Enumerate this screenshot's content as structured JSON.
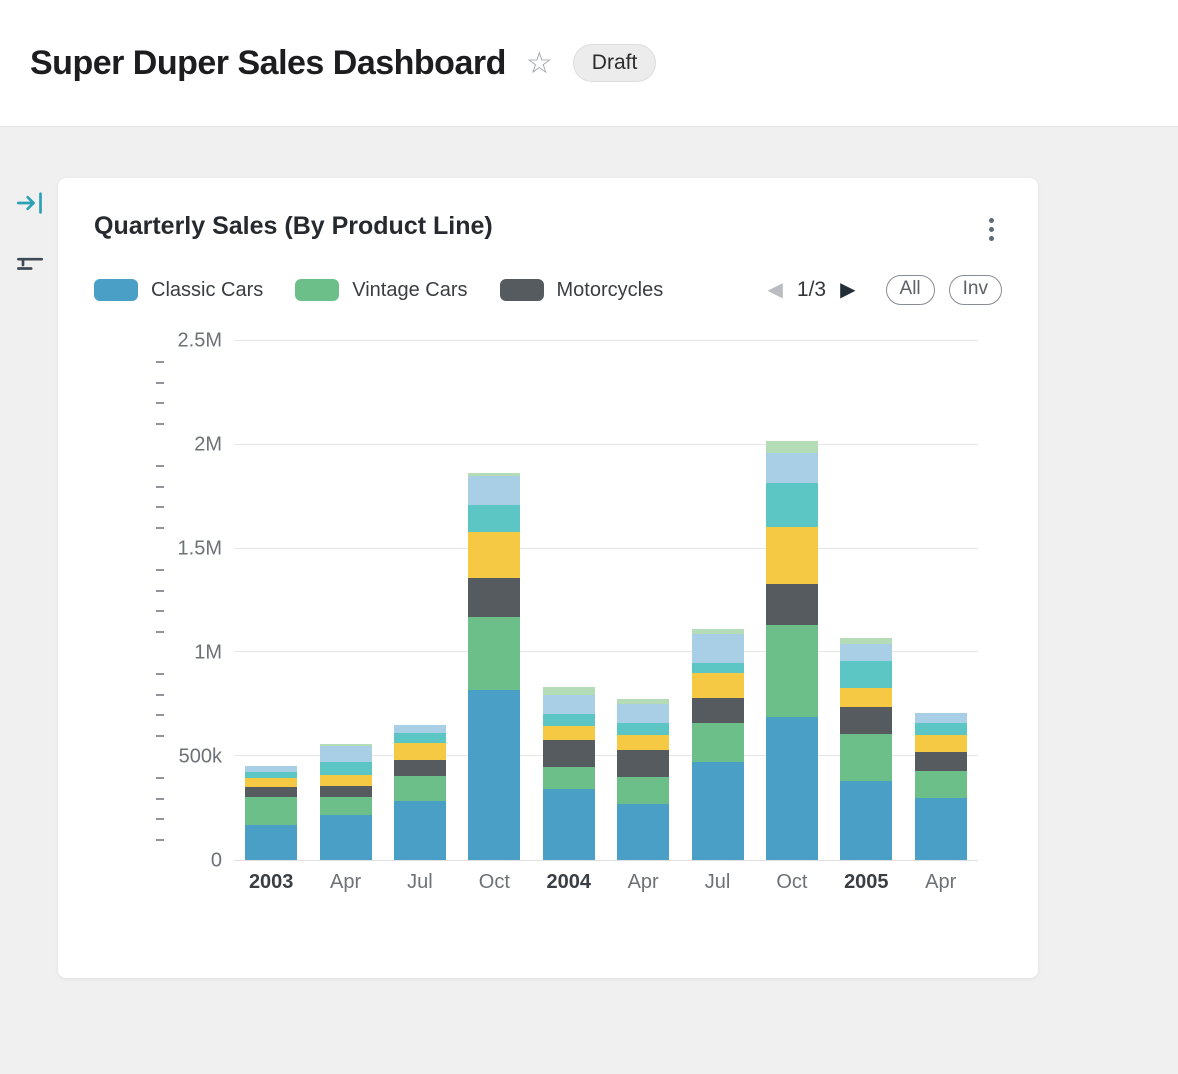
{
  "page": {
    "title": "Super Duper Sales Dashboard",
    "status_badge": "Draft"
  },
  "icons": {
    "favorite_star": "☆",
    "prev_arrow": "◀",
    "next_arrow": "▶"
  },
  "sidebar": {
    "items": [
      {
        "name": "collapse-panel-icon",
        "color": "#2ba2b4"
      },
      {
        "name": "filter-icon",
        "color": "#3f4a54"
      }
    ]
  },
  "card": {
    "title": "Quarterly Sales (By Product Line)",
    "pagination_label": "1/3",
    "buttons": [
      {
        "label": "All"
      },
      {
        "label": "Inv"
      }
    ]
  },
  "chart_data": {
    "type": "bar",
    "stacked": true,
    "title": "Quarterly Sales (By Product Line)",
    "legend_position": "top",
    "legend_visible_series": [
      "Classic Cars",
      "Vintage Cars",
      "Motorcycles"
    ],
    "ylim": [
      0,
      2500000
    ],
    "ytick_step": 500000,
    "minor_tick_step": 100000,
    "grid": true,
    "yticks": [
      {
        "value": 0,
        "label": "0"
      },
      {
        "value": 500000,
        "label": "500k"
      },
      {
        "value": 1000000,
        "label": "1M"
      },
      {
        "value": 1500000,
        "label": "1.5M"
      },
      {
        "value": 2000000,
        "label": "2M"
      },
      {
        "value": 2500000,
        "label": "2.5M"
      }
    ],
    "categories": [
      {
        "label": "2003",
        "bold": true
      },
      {
        "label": "Apr",
        "bold": false
      },
      {
        "label": "Jul",
        "bold": false
      },
      {
        "label": "Oct",
        "bold": false
      },
      {
        "label": "2004",
        "bold": true
      },
      {
        "label": "Apr",
        "bold": false
      },
      {
        "label": "Jul",
        "bold": false
      },
      {
        "label": "Oct",
        "bold": false
      },
      {
        "label": "2005",
        "bold": true
      },
      {
        "label": "Apr",
        "bold": false
      }
    ],
    "series": [
      {
        "name": "Classic Cars",
        "color": "#4a9fc6",
        "values": [
          170000,
          215000,
          285000,
          820000,
          340000,
          270000,
          470000,
          690000,
          380000,
          300000
        ]
      },
      {
        "name": "Vintage Cars",
        "color": "#6cbf88",
        "values": [
          135000,
          90000,
          120000,
          350000,
          110000,
          130000,
          190000,
          440000,
          225000,
          130000
        ]
      },
      {
        "name": "Motorcycles",
        "color": "#565b60",
        "values": [
          45000,
          50000,
          75000,
          190000,
          130000,
          130000,
          120000,
          200000,
          130000,
          90000
        ]
      },
      {
        "name": "",
        "color": "#f6c944",
        "values": [
          45000,
          55000,
          85000,
          220000,
          65000,
          70000,
          120000,
          275000,
          95000,
          80000
        ]
      },
      {
        "name": "",
        "color": "#5cc6c4",
        "values": [
          30000,
          60000,
          45000,
          130000,
          60000,
          60000,
          50000,
          210000,
          130000,
          60000
        ]
      },
      {
        "name": "",
        "color": "#a9cfe6",
        "values": [
          30000,
          80000,
          40000,
          140000,
          90000,
          90000,
          140000,
          145000,
          80000,
          50000
        ]
      },
      {
        "name": "",
        "color": "#b4dcb6",
        "values": [
          0,
          10000,
          0,
          15000,
          40000,
          25000,
          25000,
          60000,
          30000,
          0
        ]
      }
    ]
  }
}
